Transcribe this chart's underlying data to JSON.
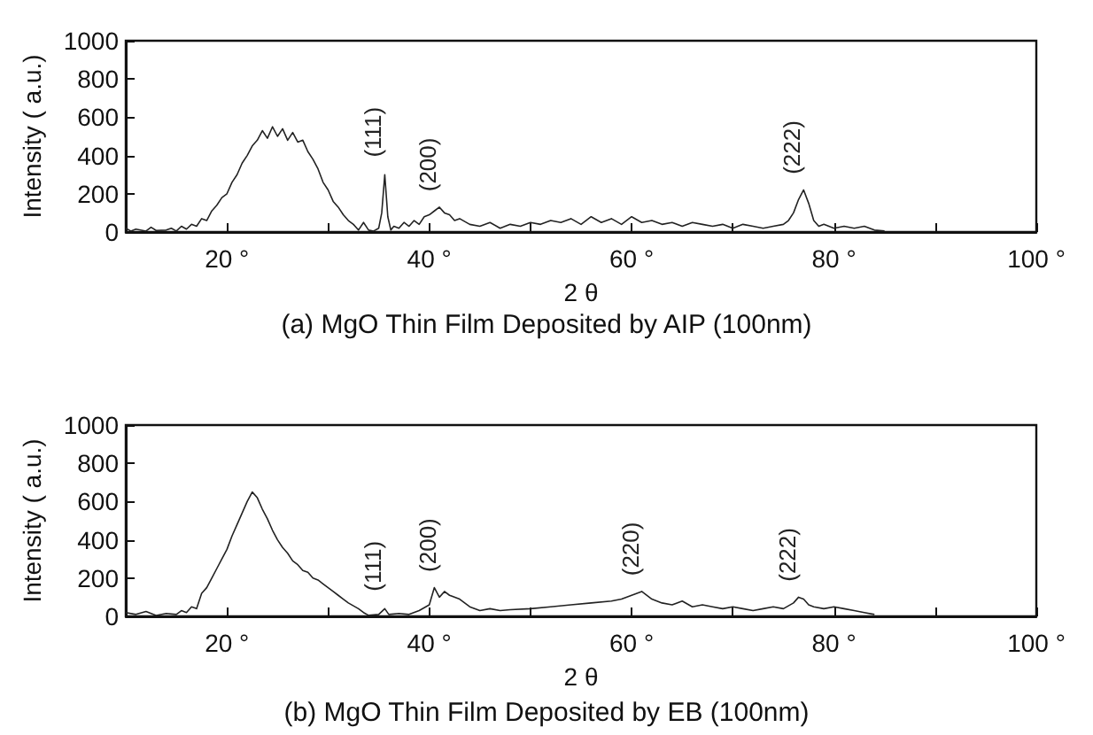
{
  "chart_data": [
    {
      "type": "line",
      "title": "(a) MgO Thin Film Deposited by AIP (100nm)",
      "xlabel": "2 θ",
      "ylabel": "Intensity ( a.u.)",
      "grid": false,
      "marker": "none",
      "xlim": [
        10,
        100
      ],
      "xticks": [
        {
          "value": 20,
          "label": "20 °"
        },
        {
          "value": 30,
          "label": null
        },
        {
          "value": 40,
          "label": "40 °"
        },
        {
          "value": 50,
          "label": null
        },
        {
          "value": 60,
          "label": "60 °"
        },
        {
          "value": 70,
          "label": null
        },
        {
          "value": 80,
          "label": "80 °"
        },
        {
          "value": 90,
          "label": null
        },
        {
          "value": 100,
          "label": "100 °"
        }
      ],
      "ylim": [
        0,
        1000
      ],
      "yticks": [
        0,
        200,
        400,
        600,
        800,
        1000
      ],
      "annotations": [
        {
          "text": "(111)",
          "x": 35.6,
          "y": 300
        },
        {
          "text": "(200)",
          "x": 41,
          "y": 130
        },
        {
          "text": "(222)",
          "x": 77,
          "y": 220
        }
      ],
      "series": [
        {
          "color": "#222222",
          "x": [
            10,
            10.5,
            11,
            12,
            12.5,
            13,
            14,
            14.5,
            15,
            15.5,
            16,
            16.5,
            17,
            17.5,
            18,
            18.5,
            19,
            19.5,
            20,
            20.5,
            21,
            21.5,
            22,
            22.5,
            23,
            23.5,
            24,
            24.5,
            25,
            25.5,
            26,
            26.5,
            27,
            27.5,
            28,
            28.5,
            29,
            29.5,
            30,
            30.5,
            31,
            31.5,
            32,
            32.5,
            33,
            33.5,
            34,
            34.5,
            35,
            35.3,
            35.6,
            35.9,
            36.2,
            36.5,
            37,
            37.5,
            38,
            38.5,
            39,
            39.5,
            40,
            40.5,
            41,
            41.5,
            42,
            42.5,
            43,
            44,
            45,
            46,
            47,
            48,
            49,
            50,
            51,
            52,
            53,
            54,
            55,
            56,
            57,
            58,
            59,
            60,
            61,
            62,
            63,
            64,
            65,
            66,
            67,
            68,
            69,
            70,
            71,
            72,
            73,
            74,
            75,
            75.5,
            76,
            76.5,
            77,
            77.5,
            78,
            78.5,
            79,
            80,
            81,
            82,
            83,
            84,
            85
          ],
          "values": [
            20,
            5,
            15,
            5,
            25,
            8,
            10,
            20,
            5,
            30,
            15,
            40,
            30,
            70,
            60,
            110,
            140,
            180,
            200,
            260,
            300,
            360,
            400,
            450,
            480,
            530,
            490,
            550,
            500,
            540,
            480,
            520,
            470,
            480,
            420,
            380,
            330,
            260,
            220,
            160,
            130,
            90,
            60,
            40,
            10,
            50,
            10,
            5,
            20,
            100,
            300,
            80,
            10,
            30,
            20,
            50,
            30,
            60,
            40,
            80,
            90,
            110,
            130,
            100,
            90,
            60,
            70,
            40,
            30,
            50,
            20,
            40,
            30,
            50,
            40,
            60,
            50,
            70,
            40,
            80,
            50,
            70,
            40,
            80,
            50,
            60,
            40,
            50,
            30,
            50,
            40,
            30,
            40,
            20,
            40,
            30,
            20,
            30,
            40,
            60,
            100,
            170,
            220,
            150,
            60,
            30,
            40,
            20,
            30,
            20,
            30,
            10,
            5
          ]
        }
      ]
    },
    {
      "type": "line",
      "title": "(b) MgO Thin Film Deposited by EB (100nm)",
      "xlabel": "2 θ",
      "ylabel": "Intensity ( a.u.)",
      "grid": false,
      "marker": "none",
      "xlim": [
        10,
        100
      ],
      "xticks": [
        {
          "value": 20,
          "label": "20 °"
        },
        {
          "value": 30,
          "label": null
        },
        {
          "value": 40,
          "label": "40 °"
        },
        {
          "value": 50,
          "label": null
        },
        {
          "value": 60,
          "label": "60 °"
        },
        {
          "value": 70,
          "label": null
        },
        {
          "value": 80,
          "label": "80 °"
        },
        {
          "value": 90,
          "label": null
        },
        {
          "value": 100,
          "label": "100 °"
        }
      ],
      "ylim": [
        0,
        1000
      ],
      "yticks": [
        0,
        200,
        400,
        600,
        800,
        1000
      ],
      "annotations": [
        {
          "text": "(111)",
          "x": 35.6,
          "y": 40
        },
        {
          "text": "(200)",
          "x": 41,
          "y": 150
        },
        {
          "text": "(220)",
          "x": 61,
          "y": 130
        },
        {
          "text": "(222)",
          "x": 76.5,
          "y": 100
        }
      ],
      "series": [
        {
          "color": "#222222",
          "x": [
            10,
            11,
            12,
            13,
            14,
            15,
            15.5,
            16,
            16.5,
            17,
            17.5,
            18,
            18.5,
            19,
            19.5,
            20,
            20.5,
            21,
            21.5,
            22,
            22.5,
            23,
            23.5,
            24,
            24.5,
            25,
            25.5,
            26,
            26.5,
            27,
            27.5,
            28,
            28.5,
            29,
            29.5,
            30,
            30.5,
            31,
            31.5,
            32,
            33,
            33.5,
            34,
            35,
            35.6,
            36,
            37,
            38,
            39,
            40,
            40.5,
            41,
            41.5,
            42,
            43,
            44,
            45,
            46,
            47,
            48,
            50,
            52,
            54,
            56,
            58,
            59,
            60,
            61,
            62,
            63,
            64,
            65,
            66,
            67,
            68,
            69,
            70,
            71,
            72,
            73,
            74,
            75,
            76,
            76.5,
            77,
            77.5,
            78,
            79,
            80,
            81,
            82,
            83,
            84
          ],
          "values": [
            20,
            10,
            25,
            5,
            15,
            10,
            30,
            20,
            50,
            40,
            120,
            150,
            200,
            250,
            300,
            350,
            420,
            480,
            540,
            600,
            650,
            620,
            560,
            510,
            450,
            400,
            360,
            330,
            290,
            270,
            240,
            230,
            200,
            190,
            170,
            150,
            130,
            110,
            90,
            70,
            40,
            20,
            5,
            10,
            40,
            10,
            15,
            10,
            30,
            60,
            150,
            100,
            130,
            110,
            90,
            50,
            30,
            40,
            30,
            35,
            40,
            50,
            60,
            70,
            80,
            90,
            110,
            130,
            90,
            70,
            60,
            80,
            50,
            60,
            50,
            40,
            50,
            40,
            30,
            40,
            50,
            40,
            70,
            100,
            90,
            60,
            50,
            40,
            50,
            40,
            30,
            20,
            10
          ]
        }
      ]
    }
  ]
}
